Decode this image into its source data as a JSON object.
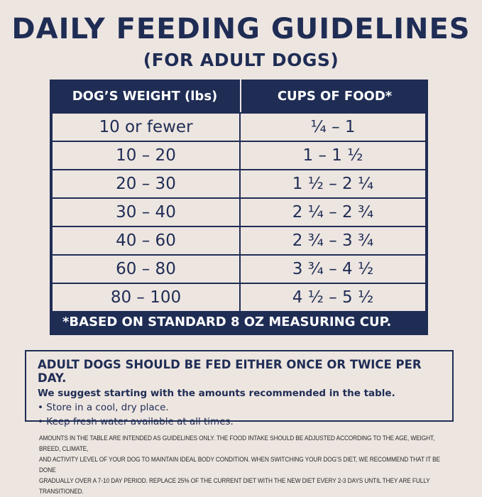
{
  "title": "DAILY FEEDING GUIDELINES",
  "subtitle": "(FOR ADULT DOGS)",
  "colors": {
    "navy": "#1f2d55",
    "background": "#ede5e0"
  },
  "table": {
    "headers": [
      "DOG’S WEIGHT (lbs)",
      "CUPS OF FOOD*"
    ],
    "rows": [
      [
        "10 or fewer",
        "¼ – 1"
      ],
      [
        "10 – 20",
        "1 – 1 ½"
      ],
      [
        "20 – 30",
        "1 ½ – 2 ¼"
      ],
      [
        "30 – 40",
        "2 ¼ – 2 ¾"
      ],
      [
        "40 – 60",
        "2 ¾ – 3 ¾"
      ],
      [
        "60 – 80",
        "3 ¾ – 4 ½"
      ],
      [
        "80 – 100",
        "4 ½ – 5 ½"
      ]
    ],
    "footnote": "*BASED ON STANDARD 8 OZ MEASURING CUP."
  },
  "info_box": {
    "heading": "ADULT DOGS SHOULD BE FED EITHER ONCE OR TWICE PER DAY.",
    "suggestion": "We suggest starting with the amounts recommended in the table.",
    "bullets": [
      "Store in a cool, dry place.",
      "Keep fresh water available at all times."
    ]
  },
  "disclaimer": [
    "AMOUNTS IN THE TABLE ARE INTENDED AS GUIDELINES ONLY. THE FOOD INTAKE SHOULD BE ADJUSTED ACCORDING TO THE AGE, WEIGHT, BREED, CLIMATE,",
    "AND ACTIVITY LEVEL OF YOUR DOG TO MAINTAIN IDEAL BODY CONDITION. WHEN SWITCHING YOUR DOG’S DIET, WE RECOMMEND THAT IT BE DONE",
    "GRADUALLY OVER A 7-10 DAY PERIOD. REPLACE 25% OF THE CURRENT DIET WITH THE NEW DIET EVERY 2-3 DAYS UNTIL THEY ARE FULLY TRANSITIONED."
  ]
}
